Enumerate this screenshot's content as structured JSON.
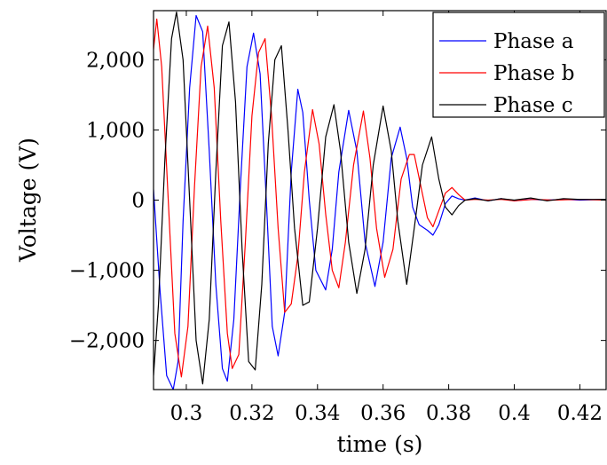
{
  "chart_data": {
    "type": "line",
    "title": "",
    "xlabel": "time (s)",
    "ylabel": "Voltage (V)",
    "xlim": [
      0.29,
      0.428
    ],
    "ylim": [
      -2700,
      2700
    ],
    "xticks": [
      0.3,
      0.32,
      0.34,
      0.36,
      0.38,
      0.4,
      0.42
    ],
    "xtick_labels": [
      "0.3",
      "0.32",
      "0.34",
      "0.36",
      "0.38",
      "0.4",
      "0.42"
    ],
    "yticks": [
      -2000,
      -1000,
      0,
      1000,
      2000
    ],
    "ytick_labels": [
      "−2,000",
      "−1,000",
      "0",
      "1,000",
      "2,000"
    ],
    "grid": false,
    "legend_position": "top-right",
    "series": [
      {
        "name": "Phase a",
        "color": "#0000ff",
        "points": [
          [
            0.29,
            150
          ],
          [
            0.292,
            -1300
          ],
          [
            0.294,
            -2500
          ],
          [
            0.296,
            -2700
          ],
          [
            0.2975,
            -2300
          ],
          [
            0.299,
            -300
          ],
          [
            0.301,
            1600
          ],
          [
            0.303,
            2630
          ],
          [
            0.305,
            2400
          ],
          [
            0.307,
            700
          ],
          [
            0.309,
            -1200
          ],
          [
            0.311,
            -2400
          ],
          [
            0.3125,
            -2580
          ],
          [
            0.3145,
            -1700
          ],
          [
            0.3165,
            200
          ],
          [
            0.3185,
            1900
          ],
          [
            0.3205,
            2380
          ],
          [
            0.3225,
            1800
          ],
          [
            0.3245,
            -100
          ],
          [
            0.3262,
            -1800
          ],
          [
            0.328,
            -2220
          ],
          [
            0.33,
            -1600
          ],
          [
            0.332,
            400
          ],
          [
            0.334,
            1580
          ],
          [
            0.3355,
            1250
          ],
          [
            0.3375,
            0
          ],
          [
            0.3395,
            -1000
          ],
          [
            0.3425,
            -1280
          ],
          [
            0.3445,
            -700
          ],
          [
            0.3465,
            400
          ],
          [
            0.3495,
            1280
          ],
          [
            0.352,
            700
          ],
          [
            0.3545,
            -600
          ],
          [
            0.3575,
            -1230
          ],
          [
            0.36,
            -600
          ],
          [
            0.3625,
            600
          ],
          [
            0.3652,
            1040
          ],
          [
            0.3672,
            600
          ],
          [
            0.369,
            -100
          ],
          [
            0.371,
            -350
          ],
          [
            0.3735,
            -430
          ],
          [
            0.3752,
            -500
          ],
          [
            0.377,
            -350
          ],
          [
            0.379,
            -50
          ],
          [
            0.381,
            60
          ],
          [
            0.383,
            20
          ],
          [
            0.385,
            0
          ],
          [
            0.388,
            30
          ],
          [
            0.392,
            -10
          ],
          [
            0.396,
            20
          ],
          [
            0.4,
            -10
          ],
          [
            0.405,
            10
          ],
          [
            0.41,
            0
          ],
          [
            0.415,
            10
          ],
          [
            0.42,
            0
          ],
          [
            0.428,
            10
          ]
        ]
      },
      {
        "name": "Phase b",
        "color": "#ff0000",
        "points": [
          [
            0.29,
            2150
          ],
          [
            0.291,
            2580
          ],
          [
            0.2925,
            1900
          ],
          [
            0.2945,
            0
          ],
          [
            0.2965,
            -1900
          ],
          [
            0.2985,
            -2520
          ],
          [
            0.3005,
            -1800
          ],
          [
            0.3025,
            200
          ],
          [
            0.3045,
            1900
          ],
          [
            0.3065,
            2480
          ],
          [
            0.3085,
            1600
          ],
          [
            0.3105,
            -300
          ],
          [
            0.3125,
            -1900
          ],
          [
            0.314,
            -2400
          ],
          [
            0.316,
            -2200
          ],
          [
            0.318,
            -600
          ],
          [
            0.32,
            1200
          ],
          [
            0.322,
            2100
          ],
          [
            0.324,
            2300
          ],
          [
            0.326,
            1200
          ],
          [
            0.328,
            -400
          ],
          [
            0.33,
            -1600
          ],
          [
            0.332,
            -1480
          ],
          [
            0.334,
            -800
          ],
          [
            0.336,
            400
          ],
          [
            0.3385,
            1290
          ],
          [
            0.3405,
            800
          ],
          [
            0.3425,
            -200
          ],
          [
            0.3445,
            -1000
          ],
          [
            0.3465,
            -1250
          ],
          [
            0.3485,
            -600
          ],
          [
            0.351,
            500
          ],
          [
            0.354,
            1270
          ],
          [
            0.356,
            600
          ],
          [
            0.358,
            -400
          ],
          [
            0.3605,
            -1100
          ],
          [
            0.363,
            -700
          ],
          [
            0.3655,
            300
          ],
          [
            0.368,
            650
          ],
          [
            0.3695,
            650
          ],
          [
            0.3715,
            200
          ],
          [
            0.3735,
            -250
          ],
          [
            0.3752,
            -380
          ],
          [
            0.377,
            -150
          ],
          [
            0.379,
            100
          ],
          [
            0.381,
            180
          ],
          [
            0.383,
            80
          ],
          [
            0.385,
            0
          ],
          [
            0.388,
            10
          ],
          [
            0.392,
            0
          ],
          [
            0.396,
            10
          ],
          [
            0.4,
            -10
          ],
          [
            0.406,
            10
          ],
          [
            0.412,
            0
          ],
          [
            0.42,
            10
          ],
          [
            0.428,
            0
          ]
        ]
      },
      {
        "name": "Phase c",
        "color": "#000000",
        "points": [
          [
            0.29,
            -2500
          ],
          [
            0.2915,
            -1500
          ],
          [
            0.2935,
            600
          ],
          [
            0.2955,
            2300
          ],
          [
            0.297,
            2680
          ],
          [
            0.299,
            2000
          ],
          [
            0.301,
            0
          ],
          [
            0.303,
            -2000
          ],
          [
            0.305,
            -2620
          ],
          [
            0.307,
            -1700
          ],
          [
            0.309,
            400
          ],
          [
            0.311,
            2200
          ],
          [
            0.313,
            2540
          ],
          [
            0.315,
            1400
          ],
          [
            0.317,
            -700
          ],
          [
            0.319,
            -2300
          ],
          [
            0.321,
            -2420
          ],
          [
            0.323,
            -1200
          ],
          [
            0.325,
            800
          ],
          [
            0.327,
            2000
          ],
          [
            0.329,
            2200
          ],
          [
            0.331,
            1000
          ],
          [
            0.333,
            -400
          ],
          [
            0.3355,
            -1500
          ],
          [
            0.3375,
            -1450
          ],
          [
            0.34,
            -400
          ],
          [
            0.3425,
            900
          ],
          [
            0.345,
            1360
          ],
          [
            0.347,
            700
          ],
          [
            0.3495,
            -600
          ],
          [
            0.352,
            -1330
          ],
          [
            0.3545,
            -700
          ],
          [
            0.357,
            500
          ],
          [
            0.36,
            1340
          ],
          [
            0.3625,
            700
          ],
          [
            0.3645,
            -300
          ],
          [
            0.3672,
            -1200
          ],
          [
            0.3695,
            -400
          ],
          [
            0.372,
            500
          ],
          [
            0.3748,
            900
          ],
          [
            0.377,
            300
          ],
          [
            0.379,
            -100
          ],
          [
            0.381,
            -210
          ],
          [
            0.383,
            -80
          ],
          [
            0.385,
            0
          ],
          [
            0.388,
            20
          ],
          [
            0.392,
            -10
          ],
          [
            0.396,
            20
          ],
          [
            0.4,
            0
          ],
          [
            0.405,
            30
          ],
          [
            0.41,
            -10
          ],
          [
            0.415,
            20
          ],
          [
            0.42,
            10
          ],
          [
            0.428,
            10
          ]
        ]
      }
    ]
  }
}
